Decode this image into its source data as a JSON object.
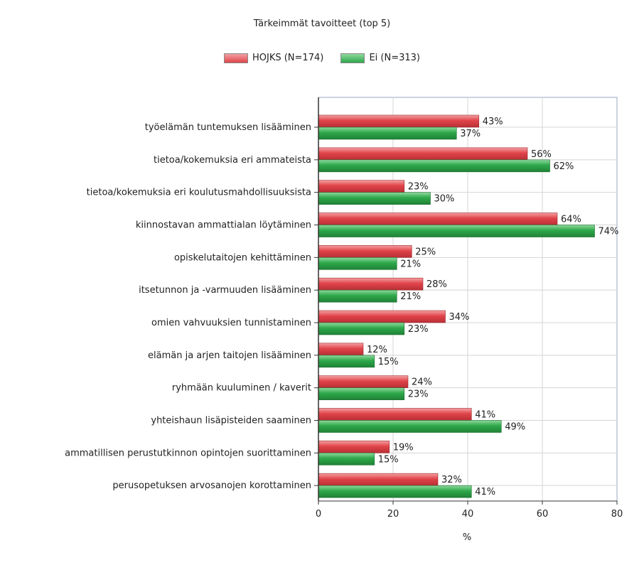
{
  "chart_data": {
    "type": "bar",
    "orientation": "horizontal",
    "title": "Tärkeimmät tavoitteet (top 5)",
    "xlabel": "%",
    "ylabel": "",
    "xlim": [
      0,
      80
    ],
    "xticks": [
      0,
      20,
      40,
      60,
      80
    ],
    "grid": true,
    "legend_position": "top",
    "categories": [
      "työelämän tuntemuksen lisääminen",
      "tietoa/kokemuksia eri ammateista",
      "tietoa/kokemuksia eri koulutusmahdollisuuksista",
      "kiinnostavan ammattialan löytäminen",
      "opiskelutaitojen kehittäminen",
      "itsetunnon ja -varmuuden lisääminen",
      "omien vahvuuksien tunnistaminen",
      "elämän ja arjen taitojen lisääminen",
      "ryhmään kuuluminen / kaverit",
      "yhteishaun lisäpisteiden saaminen",
      "ammatillisen perustutkinnon opintojen suorittaminen",
      "perusopetuksen arvosanojen korottaminen"
    ],
    "series": [
      {
        "name": "HOJKS (N=174)",
        "color": "#e0444a",
        "values": [
          43,
          56,
          23,
          64,
          25,
          28,
          34,
          12,
          24,
          41,
          19,
          32
        ],
        "labels": [
          "43%",
          "56%",
          "23%",
          "64%",
          "25%",
          "28%",
          "34%",
          "12%",
          "24%",
          "41%",
          "19%",
          "32%"
        ]
      },
      {
        "name": "Ei (N=313)",
        "color": "#2ea84a",
        "values": [
          37,
          62,
          30,
          74,
          21,
          21,
          23,
          15,
          23,
          49,
          15,
          41
        ],
        "labels": [
          "37%",
          "62%",
          "30%",
          "74%",
          "21%",
          "21%",
          "23%",
          "15%",
          "23%",
          "49%",
          "15%",
          "41%"
        ]
      }
    ]
  }
}
